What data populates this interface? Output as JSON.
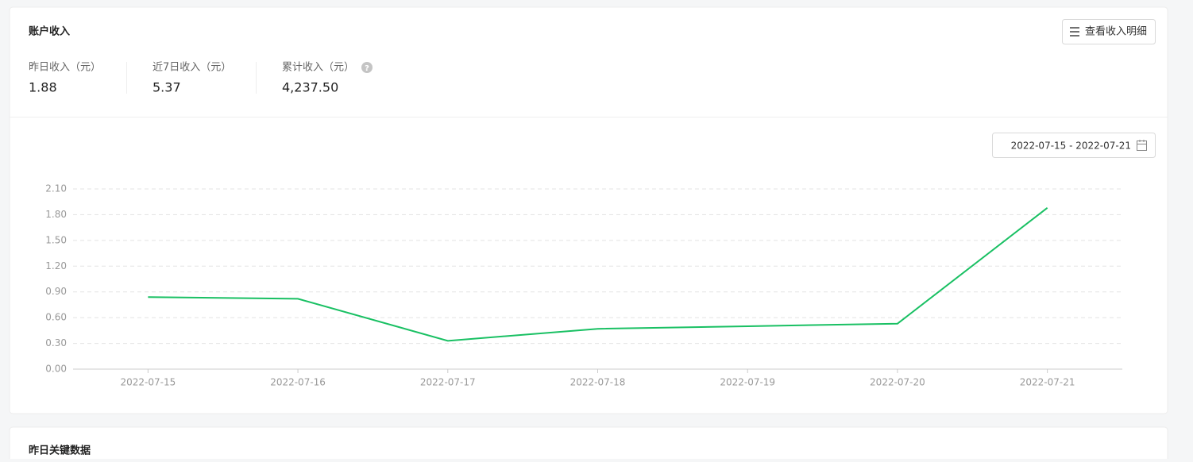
{
  "header": {
    "title": "账户收入",
    "button": "查看收入明细"
  },
  "stats": [
    {
      "label": "昨日收入（元）",
      "value": "1.88"
    },
    {
      "label": "近7日收入（元）",
      "value": "5.37"
    },
    {
      "label": "累计收入（元）",
      "value": "4,237.50"
    }
  ],
  "date_range": "2022-07-15 - 2022-07-21",
  "chart_data": {
    "type": "line",
    "categories": [
      "2022-07-15",
      "2022-07-16",
      "2022-07-17",
      "2022-07-18",
      "2022-07-19",
      "2022-07-20",
      "2022-07-21"
    ],
    "values": [
      0.84,
      0.82,
      0.33,
      0.47,
      0.5,
      0.53,
      1.88
    ],
    "color": "#19c063",
    "ylim": [
      0,
      2.1
    ],
    "yticks": [
      {
        "value": 0,
        "label": "0.00"
      },
      {
        "value": 0.3,
        "label": "0.30"
      },
      {
        "value": 0.6,
        "label": "0.60"
      },
      {
        "value": 0.9,
        "label": "0.90"
      },
      {
        "value": 1.2,
        "label": "1.20"
      },
      {
        "value": 1.5,
        "label": "1.50"
      },
      {
        "value": 1.8,
        "label": "1.80"
      },
      {
        "value": 2.1,
        "label": "2.10"
      }
    ],
    "grid": true
  },
  "section2": {
    "title": "昨日关键数据"
  }
}
